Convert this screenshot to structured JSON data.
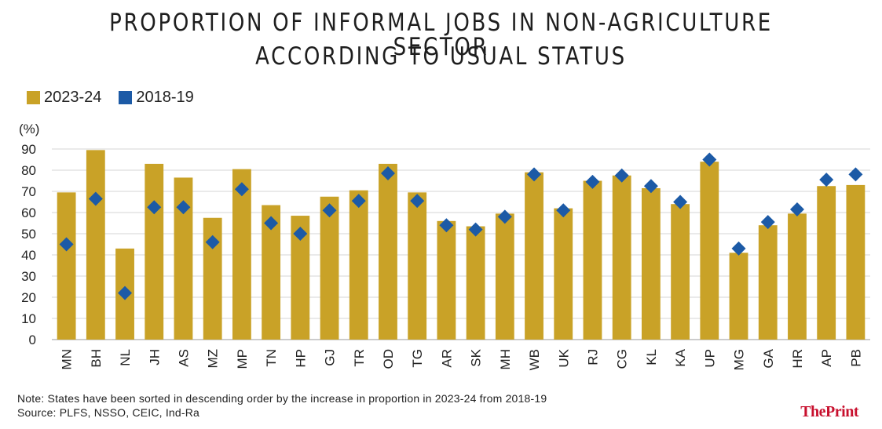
{
  "title_line1": "PROPORTION OF INFORMAL JOBS IN NON-AGRICULTURE SECTOR",
  "title_line2": "ACCORDING TO USUAL STATUS",
  "note": "Note: States have been sorted in descending order by the increase in proportion in 2023-24 from 2018-19",
  "source": "Source: PLFS, NSSO, CEIC, Ind-Ra",
  "brand": "ThePrint",
  "colors": {
    "bar": "#c9a227",
    "marker": "#1c5aa6",
    "grid": "#d4d4d4",
    "brand": "#c8102e"
  },
  "chart_data": {
    "type": "bar",
    "ylabel": "(%)",
    "ylim": [
      0,
      90
    ],
    "yticks": [
      0,
      10,
      20,
      30,
      40,
      50,
      60,
      70,
      80,
      90
    ],
    "grid": true,
    "legend_position": "top-left",
    "categories": [
      "MN",
      "BH",
      "NL",
      "JH",
      "AS",
      "MZ",
      "MP",
      "TN",
      "HP",
      "GJ",
      "TR",
      "OD",
      "TG",
      "AR",
      "SK",
      "MH",
      "WB",
      "UK",
      "RJ",
      "CG",
      "KL",
      "KA",
      "UP",
      "MG",
      "GA",
      "HR",
      "AP",
      "PB"
    ],
    "series": [
      {
        "name": "2023-24",
        "style": "bar",
        "values": [
          69.5,
          89.5,
          43,
          83,
          76.5,
          57.5,
          80.5,
          63.5,
          58.5,
          67.5,
          70.5,
          83,
          69.5,
          56,
          53.5,
          59.5,
          79,
          62,
          75,
          77.5,
          71.5,
          64,
          84,
          41,
          54,
          59.5,
          72.5,
          73
        ]
      },
      {
        "name": "2018-19",
        "style": "marker",
        "values": [
          45,
          66.5,
          22,
          62.5,
          62.5,
          46,
          71,
          55,
          50,
          61,
          65.5,
          78.5,
          65.5,
          54,
          52,
          58,
          78,
          61,
          74.5,
          77.5,
          72.5,
          65,
          85,
          43,
          55.5,
          61.5,
          75.5,
          78
        ]
      }
    ]
  }
}
